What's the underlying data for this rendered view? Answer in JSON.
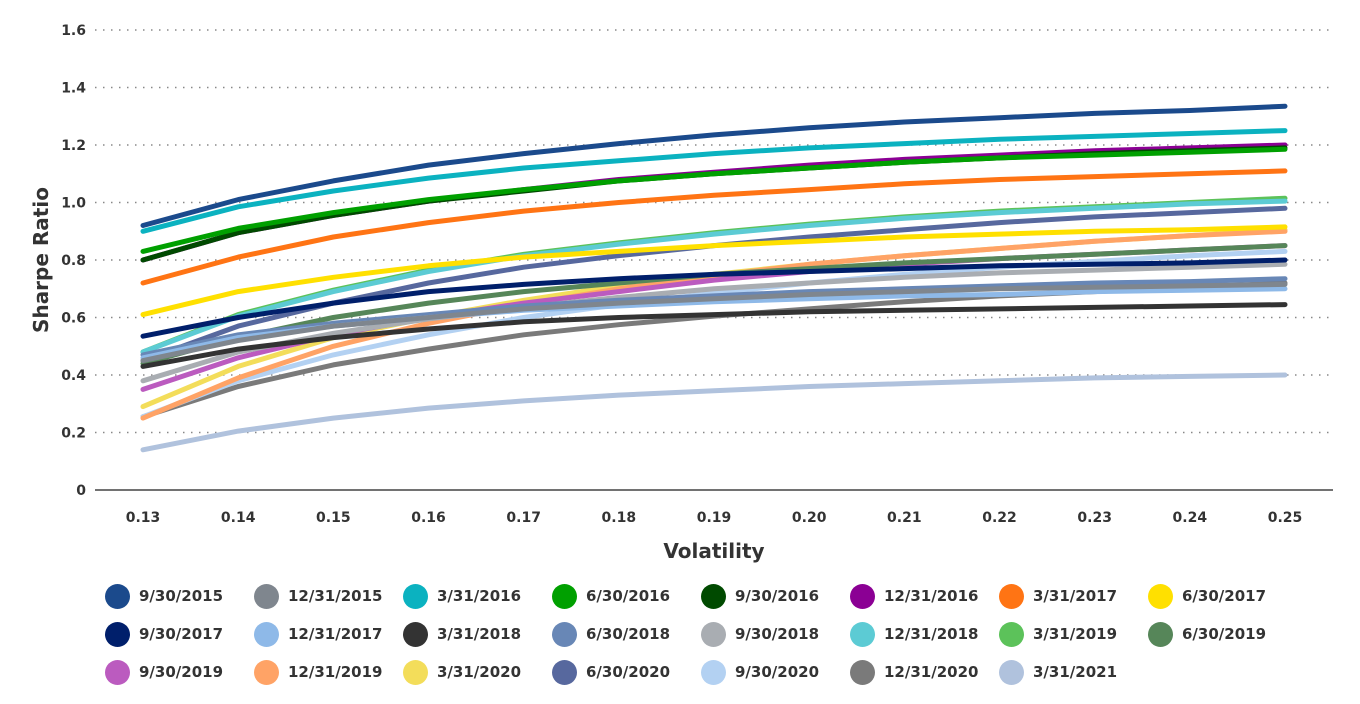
{
  "chart_data": {
    "type": "line",
    "title": "",
    "xlabel": "Volatility",
    "ylabel": "Sharpe Ratio",
    "x": [
      0.13,
      0.14,
      0.15,
      0.16,
      0.17,
      0.18,
      0.19,
      0.2,
      0.21,
      0.22,
      0.23,
      0.24,
      0.25
    ],
    "x_tick_labels": [
      "0.13",
      "0.14",
      "0.15",
      "0.16",
      "0.17",
      "0.18",
      "0.19",
      "0.20",
      "0.21",
      "0.22",
      "0.23",
      "0.24",
      "0.25"
    ],
    "ylim": [
      0,
      1.6
    ],
    "y_ticks": [
      0,
      0.2,
      0.4,
      0.6,
      0.8,
      1.0,
      1.2,
      1.4,
      1.6
    ],
    "y_tick_labels": [
      "0",
      "0.2",
      "0.4",
      "0.6",
      "0.8",
      "1.0",
      "1.2",
      "1.4",
      "1.6"
    ],
    "grid": true,
    "legend_position": "bottom",
    "series": [
      {
        "name": "9/30/2015",
        "color": "#1b4a8c",
        "values": [
          0.92,
          1.01,
          1.075,
          1.13,
          1.17,
          1.205,
          1.235,
          1.26,
          1.28,
          1.295,
          1.31,
          1.32,
          1.335
        ]
      },
      {
        "name": "12/31/2015",
        "color": "#7f868e",
        "values": [
          0.45,
          0.52,
          0.57,
          0.6,
          0.63,
          0.65,
          0.665,
          0.68,
          0.69,
          0.7,
          0.705,
          0.71,
          0.715
        ]
      },
      {
        "name": "3/31/2016",
        "color": "#0bb2c0",
        "values": [
          0.9,
          0.985,
          1.04,
          1.085,
          1.12,
          1.145,
          1.17,
          1.19,
          1.205,
          1.22,
          1.23,
          1.24,
          1.25
        ]
      },
      {
        "name": "6/30/2016",
        "color": "#00a000",
        "values": [
          0.83,
          0.91,
          0.965,
          1.01,
          1.045,
          1.075,
          1.1,
          1.12,
          1.14,
          1.155,
          1.165,
          1.175,
          1.185
        ]
      },
      {
        "name": "9/30/2016",
        "color": "#004a00",
        "values": [
          0.8,
          0.895,
          0.955,
          1.005,
          1.04,
          1.075,
          1.1,
          1.12,
          1.14,
          1.155,
          1.17,
          1.18,
          1.19
        ]
      },
      {
        "name": "12/31/2016",
        "color": "#8b0094",
        "values": [
          0.8,
          0.895,
          0.955,
          1.005,
          1.045,
          1.08,
          1.105,
          1.13,
          1.15,
          1.165,
          1.18,
          1.19,
          1.2
        ]
      },
      {
        "name": "3/31/2017",
        "color": "#ff7414",
        "values": [
          0.72,
          0.81,
          0.88,
          0.93,
          0.97,
          1.0,
          1.025,
          1.045,
          1.065,
          1.08,
          1.09,
          1.1,
          1.11
        ]
      },
      {
        "name": "6/30/2017",
        "color": "#ffe000",
        "values": [
          0.61,
          0.69,
          0.74,
          0.78,
          0.81,
          0.83,
          0.85,
          0.865,
          0.88,
          0.89,
          0.9,
          0.905,
          0.915
        ]
      },
      {
        "name": "9/30/2017",
        "color": "#001f6b",
        "values": [
          0.535,
          0.6,
          0.65,
          0.69,
          0.715,
          0.735,
          0.75,
          0.76,
          0.77,
          0.78,
          0.785,
          0.79,
          0.8
        ]
      },
      {
        "name": "12/31/2017",
        "color": "#8eb9e8",
        "values": [
          0.46,
          0.53,
          0.57,
          0.6,
          0.625,
          0.64,
          0.655,
          0.665,
          0.675,
          0.68,
          0.69,
          0.695,
          0.7
        ]
      },
      {
        "name": "3/31/2018",
        "color": "#333333",
        "values": [
          0.43,
          0.49,
          0.53,
          0.56,
          0.585,
          0.6,
          0.61,
          0.62,
          0.625,
          0.63,
          0.635,
          0.64,
          0.645
        ]
      },
      {
        "name": "6/30/2018",
        "color": "#6887b6",
        "values": [
          0.47,
          0.54,
          0.58,
          0.61,
          0.64,
          0.66,
          0.675,
          0.69,
          0.7,
          0.71,
          0.72,
          0.725,
          0.735
        ]
      },
      {
        "name": "9/30/2018",
        "color": "#a9adb2",
        "values": [
          0.38,
          0.48,
          0.545,
          0.595,
          0.635,
          0.67,
          0.7,
          0.72,
          0.74,
          0.755,
          0.765,
          0.775,
          0.785
        ]
      },
      {
        "name": "12/31/2018",
        "color": "#5ccbd4",
        "values": [
          0.48,
          0.605,
          0.69,
          0.76,
          0.815,
          0.855,
          0.89,
          0.92,
          0.945,
          0.965,
          0.98,
          0.995,
          1.005
        ]
      },
      {
        "name": "3/31/2019",
        "color": "#5cc25a",
        "values": [
          0.48,
          0.61,
          0.695,
          0.765,
          0.82,
          0.86,
          0.895,
          0.925,
          0.95,
          0.97,
          0.985,
          1.0,
          1.015
        ]
      },
      {
        "name": "6/30/2019",
        "color": "#568659",
        "values": [
          0.44,
          0.53,
          0.6,
          0.65,
          0.69,
          0.72,
          0.75,
          0.77,
          0.79,
          0.805,
          0.82,
          0.835,
          0.85
        ]
      },
      {
        "name": "9/30/2019",
        "color": "#bb5bbf",
        "values": [
          0.35,
          0.46,
          0.54,
          0.6,
          0.65,
          0.69,
          0.73,
          0.76,
          0.785,
          0.805,
          0.82,
          0.835,
          0.85
        ]
      },
      {
        "name": "12/31/2019",
        "color": "#ffa366",
        "values": [
          0.25,
          0.39,
          0.5,
          0.58,
          0.645,
          0.7,
          0.745,
          0.785,
          0.815,
          0.84,
          0.865,
          0.885,
          0.9
        ]
      },
      {
        "name": "3/31/2020",
        "color": "#f3dd5a",
        "values": [
          0.29,
          0.43,
          0.53,
          0.6,
          0.66,
          0.71,
          0.75,
          0.785,
          0.815,
          0.84,
          0.865,
          0.885,
          0.905
        ]
      },
      {
        "name": "6/30/2020",
        "color": "#57689e",
        "values": [
          0.45,
          0.57,
          0.65,
          0.72,
          0.775,
          0.815,
          0.85,
          0.88,
          0.905,
          0.93,
          0.95,
          0.965,
          0.98
        ]
      },
      {
        "name": "9/30/2020",
        "color": "#b3d1f2",
        "values": [
          0.255,
          0.38,
          0.47,
          0.54,
          0.6,
          0.645,
          0.685,
          0.72,
          0.75,
          0.775,
          0.795,
          0.815,
          0.83
        ]
      },
      {
        "name": "12/31/2020",
        "color": "#7a7a7a",
        "values": [
          0.255,
          0.36,
          0.435,
          0.49,
          0.54,
          0.575,
          0.605,
          0.63,
          0.655,
          0.675,
          0.69,
          0.705,
          0.72
        ]
      },
      {
        "name": "3/31/2021",
        "color": "#b0c2dd",
        "values": [
          0.14,
          0.205,
          0.25,
          0.285,
          0.31,
          0.33,
          0.345,
          0.36,
          0.37,
          0.38,
          0.39,
          0.395,
          0.4
        ]
      }
    ]
  }
}
